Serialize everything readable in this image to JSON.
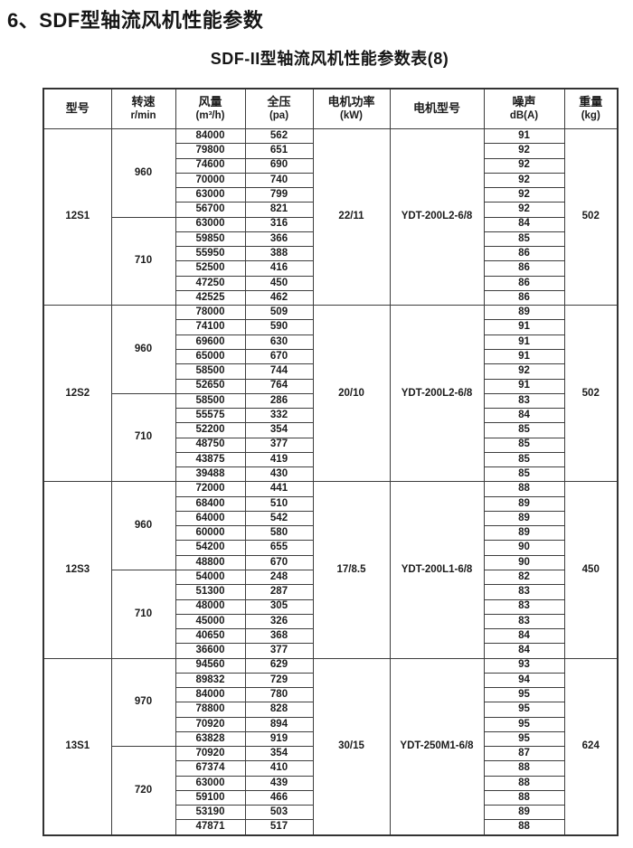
{
  "page": {
    "heading": "6、SDF型轴流风机性能参数",
    "table_title": "SDF-II型轴流风机性能参数表(8)"
  },
  "table": {
    "headers": [
      {
        "line1": "型号",
        "line2": ""
      },
      {
        "line1": "转速",
        "line2": "r/min"
      },
      {
        "line1": "风量",
        "line2": "(m³/h)"
      },
      {
        "line1": "全压",
        "line2": "(pa)"
      },
      {
        "line1": "电机功率",
        "line2": "(kW)"
      },
      {
        "line1": "电机型号",
        "line2": ""
      },
      {
        "line1": "噪声",
        "line2": "dB(A)"
      },
      {
        "line1": "重量",
        "line2": "(kg)"
      }
    ],
    "groups": [
      {
        "model": "12S1",
        "power": "22/11",
        "motor": "YDT-200L2-6/8",
        "weight": "502",
        "speed_sections": [
          {
            "speed": "960",
            "rows": [
              [
                "84000",
                "562",
                "91"
              ],
              [
                "79800",
                "651",
                "92"
              ],
              [
                "74600",
                "690",
                "92"
              ],
              [
                "70000",
                "740",
                "92"
              ],
              [
                "63000",
                "799",
                "92"
              ],
              [
                "56700",
                "821",
                "92"
              ]
            ]
          },
          {
            "speed": "710",
            "rows": [
              [
                "63000",
                "316",
                "84"
              ],
              [
                "59850",
                "366",
                "85"
              ],
              [
                "55950",
                "388",
                "86"
              ],
              [
                "52500",
                "416",
                "86"
              ],
              [
                "47250",
                "450",
                "86"
              ],
              [
                "42525",
                "462",
                "86"
              ]
            ]
          }
        ]
      },
      {
        "model": "12S2",
        "power": "20/10",
        "motor": "YDT-200L2-6/8",
        "weight": "502",
        "speed_sections": [
          {
            "speed": "960",
            "rows": [
              [
                "78000",
                "509",
                "89"
              ],
              [
                "74100",
                "590",
                "91"
              ],
              [
                "69600",
                "630",
                "91"
              ],
              [
                "65000",
                "670",
                "91"
              ],
              [
                "58500",
                "744",
                "92"
              ],
              [
                "52650",
                "764",
                "91"
              ]
            ]
          },
          {
            "speed": "710",
            "rows": [
              [
                "58500",
                "286",
                "83"
              ],
              [
                "55575",
                "332",
                "84"
              ],
              [
                "52200",
                "354",
                "85"
              ],
              [
                "48750",
                "377",
                "85"
              ],
              [
                "43875",
                "419",
                "85"
              ],
              [
                "39488",
                "430",
                "85"
              ]
            ]
          }
        ]
      },
      {
        "model": "12S3",
        "power": "17/8.5",
        "motor": "YDT-200L1-6/8",
        "weight": "450",
        "speed_sections": [
          {
            "speed": "960",
            "rows": [
              [
                "72000",
                "441",
                "88"
              ],
              [
                "68400",
                "510",
                "89"
              ],
              [
                "64000",
                "542",
                "89"
              ],
              [
                "60000",
                "580",
                "89"
              ],
              [
                "54200",
                "655",
                "90"
              ],
              [
                "48800",
                "670",
                "90"
              ]
            ]
          },
          {
            "speed": "710",
            "rows": [
              [
                "54000",
                "248",
                "82"
              ],
              [
                "51300",
                "287",
                "83"
              ],
              [
                "48000",
                "305",
                "83"
              ],
              [
                "45000",
                "326",
                "83"
              ],
              [
                "40650",
                "368",
                "84"
              ],
              [
                "36600",
                "377",
                "84"
              ]
            ]
          }
        ]
      },
      {
        "model": "13S1",
        "power": "30/15",
        "motor": "YDT-250M1-6/8",
        "weight": "624",
        "speed_sections": [
          {
            "speed": "970",
            "rows": [
              [
                "94560",
                "629",
                "93"
              ],
              [
                "89832",
                "729",
                "94"
              ],
              [
                "84000",
                "780",
                "95"
              ],
              [
                "78800",
                "828",
                "95"
              ],
              [
                "70920",
                "894",
                "95"
              ],
              [
                "63828",
                "919",
                "95"
              ]
            ]
          },
          {
            "speed": "720",
            "rows": [
              [
                "70920",
                "354",
                "87"
              ],
              [
                "67374",
                "410",
                "88"
              ],
              [
                "63000",
                "439",
                "88"
              ],
              [
                "59100",
                "466",
                "88"
              ],
              [
                "53190",
                "503",
                "89"
              ],
              [
                "47871",
                "517",
                "88"
              ]
            ]
          }
        ]
      }
    ]
  }
}
